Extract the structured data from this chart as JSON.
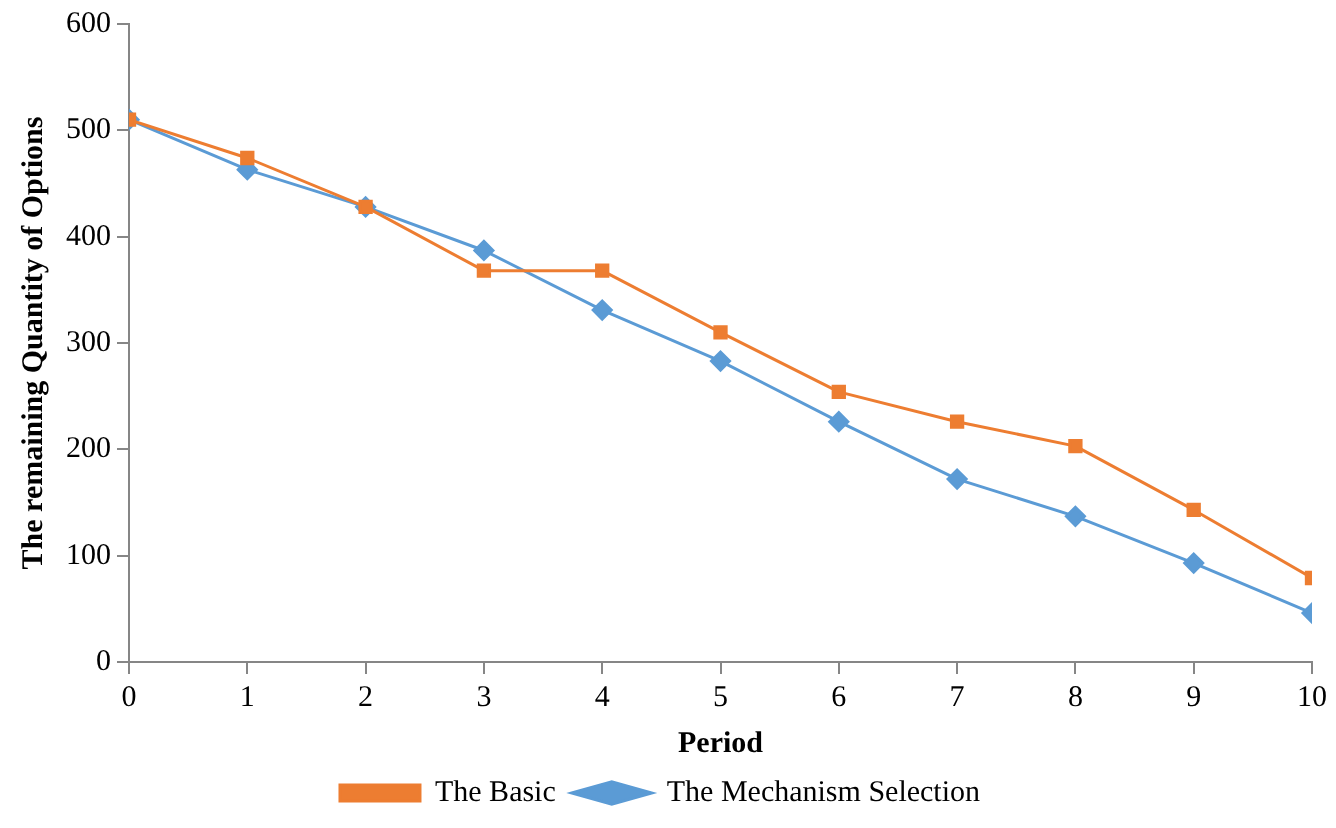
{
  "chart_data": {
    "type": "line",
    "xlabel": "Period",
    "ylabel": "The remaining Quantity of Options",
    "x": [
      0,
      1,
      2,
      3,
      4,
      5,
      6,
      7,
      8,
      9,
      10
    ],
    "xlim": [
      0,
      10
    ],
    "xticks": [
      0,
      1,
      2,
      3,
      4,
      5,
      6,
      7,
      8,
      9,
      10
    ],
    "ylim": [
      0,
      600
    ],
    "yticks": [
      0,
      100,
      200,
      300,
      400,
      500,
      600
    ],
    "grid": false,
    "legend": "bottom",
    "line_style": "solid",
    "series": [
      {
        "name": "The Mechanism Selection",
        "color": "#5b9bd5",
        "marker": "diamond",
        "values": [
          510,
          463,
          428,
          387,
          331,
          283,
          226,
          172,
          137,
          93,
          46
        ]
      },
      {
        "name": "The Basic",
        "color": "#ed7d31",
        "marker": "square",
        "values": [
          510,
          474,
          428,
          368,
          368,
          310,
          254,
          226,
          203,
          143,
          79
        ]
      }
    ]
  }
}
